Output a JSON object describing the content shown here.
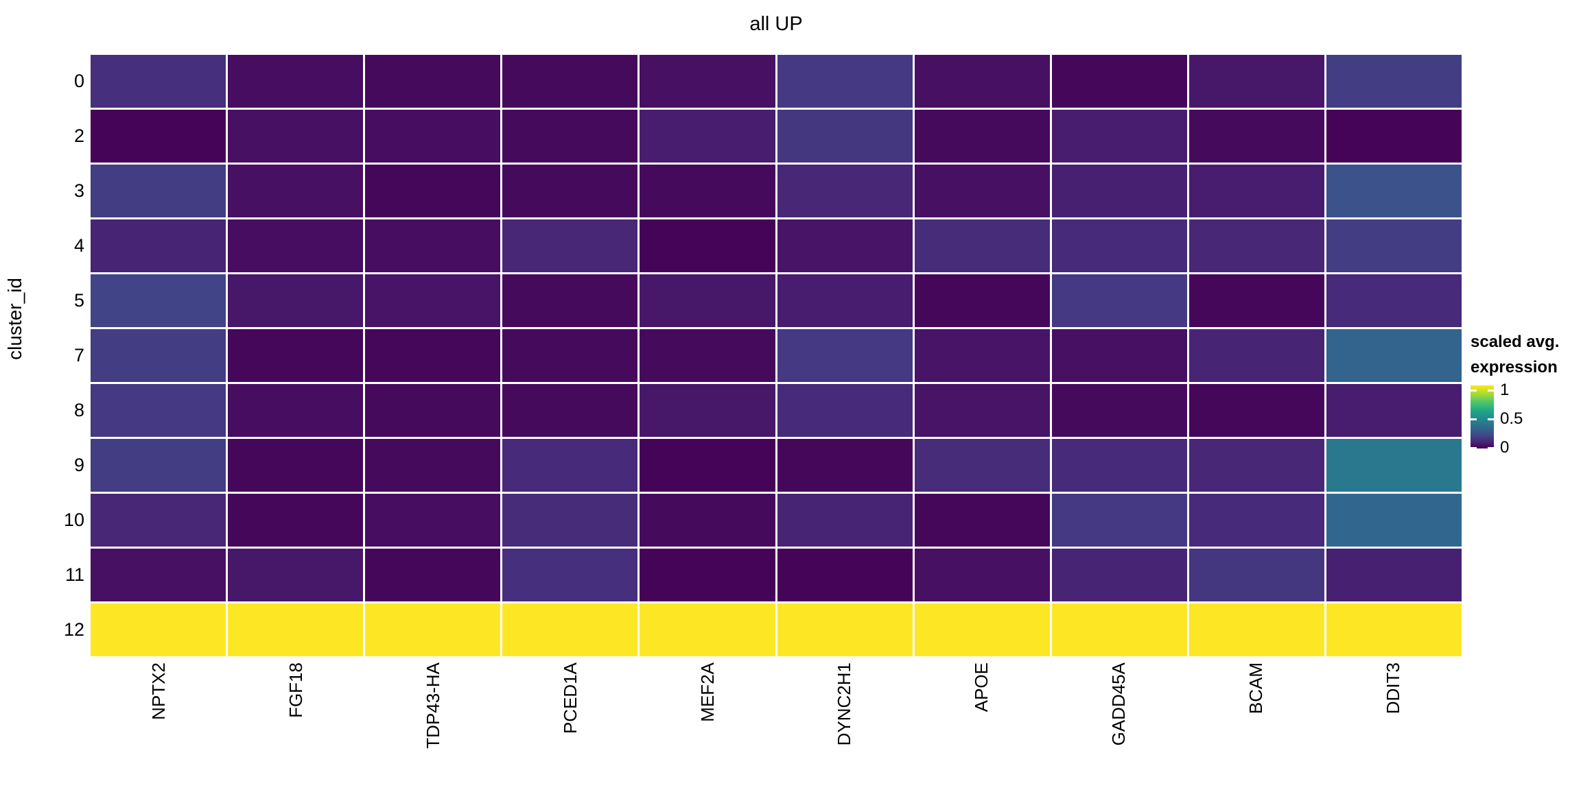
{
  "title": "all UP",
  "y_axis": {
    "label": "cluster_id",
    "ticks": [
      "0",
      "2",
      "3",
      "4",
      "5",
      "7",
      "8",
      "9",
      "10",
      "11",
      "12"
    ]
  },
  "x_axis": {
    "ticks": [
      "NPTX2",
      "FGF18",
      "TDP43-HA",
      "PCED1A",
      "MEF2A",
      "DYNC2H1",
      "APOE",
      "GADD45A",
      "BCAM",
      "DDIT3"
    ]
  },
  "legend": {
    "title_line1": "scaled avg.",
    "title_line2": "expression",
    "tick_labels": [
      "1",
      "0.5",
      "0"
    ],
    "tick_values": [
      1,
      0.5,
      0
    ]
  },
  "chart_data": {
    "type": "heatmap",
    "title": "all UP",
    "xlabel": "",
    "ylabel": "cluster_id",
    "legend_title": "scaled avg. expression",
    "colormap": "viridis",
    "value_range": [
      0,
      1
    ],
    "grid": false,
    "legend_position": "right",
    "columns": [
      "NPTX2",
      "FGF18",
      "TDP43-HA",
      "PCED1A",
      "MEF2A",
      "DYNC2H1",
      "APOE",
      "GADD45A",
      "BCAM",
      "DDIT3"
    ],
    "rows": [
      "0",
      "2",
      "3",
      "4",
      "5",
      "7",
      "8",
      "9",
      "10",
      "11",
      "12"
    ],
    "values": [
      [
        0.14,
        0.04,
        0.03,
        0.03,
        0.05,
        0.17,
        0.05,
        0.02,
        0.07,
        0.18
      ],
      [
        0.01,
        0.05,
        0.04,
        0.03,
        0.08,
        0.16,
        0.03,
        0.08,
        0.03,
        0.01
      ],
      [
        0.18,
        0.05,
        0.02,
        0.03,
        0.03,
        0.11,
        0.05,
        0.09,
        0.08,
        0.25
      ],
      [
        0.1,
        0.04,
        0.04,
        0.11,
        0.01,
        0.06,
        0.13,
        0.12,
        0.11,
        0.18
      ],
      [
        0.2,
        0.07,
        0.06,
        0.03,
        0.07,
        0.08,
        0.02,
        0.17,
        0.02,
        0.12
      ],
      [
        0.18,
        0.02,
        0.02,
        0.03,
        0.03,
        0.17,
        0.06,
        0.05,
        0.1,
        0.32
      ],
      [
        0.17,
        0.04,
        0.03,
        0.03,
        0.07,
        0.12,
        0.06,
        0.03,
        0.02,
        0.08
      ],
      [
        0.18,
        0.02,
        0.03,
        0.12,
        0.01,
        0.02,
        0.13,
        0.12,
        0.11,
        0.4
      ],
      [
        0.11,
        0.02,
        0.04,
        0.13,
        0.03,
        0.1,
        0.02,
        0.17,
        0.12,
        0.33
      ],
      [
        0.05,
        0.07,
        0.02,
        0.14,
        0.01,
        0.01,
        0.05,
        0.1,
        0.16,
        0.09
      ],
      [
        1,
        1,
        1,
        1,
        1,
        1,
        1,
        1,
        1,
        1
      ]
    ]
  },
  "colors": {
    "background": "#ffffff",
    "grid_gap": "#ffffff",
    "text": "#000000",
    "viridis_low": "#440154",
    "viridis_mid": "#21918C",
    "viridis_high": "#FDE725"
  }
}
